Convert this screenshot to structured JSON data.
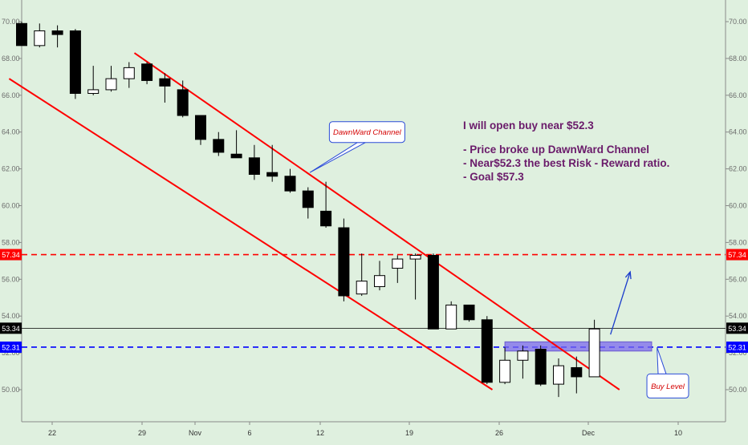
{
  "chart_data": {
    "type": "candlestick",
    "y_range": [
      48.6,
      71.0
    ],
    "y_ticks": [
      "70.00",
      "68.00",
      "66.00",
      "64.00",
      "62.00",
      "60.00",
      "58.00",
      "56.00",
      "54.00",
      "52.00",
      "50.00"
    ],
    "x_ticks": [
      "22",
      "29",
      "Nov",
      "6",
      "12",
      "19",
      "26",
      "Dec",
      "10"
    ],
    "candles": [
      {
        "o": 69.9,
        "h": 70.0,
        "l": 68.7,
        "c": 68.7
      },
      {
        "o": 68.7,
        "h": 69.9,
        "l": 68.6,
        "c": 69.5
      },
      {
        "o": 69.5,
        "h": 69.8,
        "l": 68.6,
        "c": 69.3
      },
      {
        "o": 69.5,
        "h": 69.6,
        "l": 65.8,
        "c": 66.1
      },
      {
        "o": 66.1,
        "h": 67.6,
        "l": 66.0,
        "c": 66.3
      },
      {
        "o": 66.3,
        "h": 67.6,
        "l": 66.2,
        "c": 66.9
      },
      {
        "o": 66.9,
        "h": 67.8,
        "l": 66.4,
        "c": 67.5
      },
      {
        "o": 67.7,
        "h": 67.8,
        "l": 66.6,
        "c": 66.8
      },
      {
        "o": 66.9,
        "h": 67.2,
        "l": 65.6,
        "c": 66.5
      },
      {
        "o": 66.3,
        "h": 66.8,
        "l": 64.8,
        "c": 64.9
      },
      {
        "o": 64.9,
        "h": 64.9,
        "l": 63.3,
        "c": 63.6
      },
      {
        "o": 63.6,
        "h": 64.0,
        "l": 62.7,
        "c": 62.9
      },
      {
        "o": 62.8,
        "h": 64.1,
        "l": 62.6,
        "c": 62.6
      },
      {
        "o": 62.6,
        "h": 63.3,
        "l": 61.4,
        "c": 61.7
      },
      {
        "o": 61.8,
        "h": 63.3,
        "l": 61.3,
        "c": 61.6
      },
      {
        "o": 61.6,
        "h": 62.0,
        "l": 60.7,
        "c": 60.8
      },
      {
        "o": 60.8,
        "h": 61.0,
        "l": 59.3,
        "c": 59.9
      },
      {
        "o": 59.7,
        "h": 61.3,
        "l": 58.8,
        "c": 58.9
      },
      {
        "o": 58.8,
        "h": 59.3,
        "l": 54.8,
        "c": 55.1
      },
      {
        "o": 55.2,
        "h": 57.4,
        "l": 55.1,
        "c": 55.9
      },
      {
        "o": 55.6,
        "h": 57.0,
        "l": 55.4,
        "c": 56.2
      },
      {
        "o": 56.6,
        "h": 57.3,
        "l": 55.8,
        "c": 57.1
      },
      {
        "o": 57.1,
        "h": 57.4,
        "l": 54.9,
        "c": 57.3
      },
      {
        "o": 57.3,
        "h": 57.4,
        "l": 53.4,
        "c": 53.3
      },
      {
        "o": 53.3,
        "h": 54.8,
        "l": 53.3,
        "c": 54.6
      },
      {
        "o": 54.6,
        "h": 54.6,
        "l": 53.7,
        "c": 53.8
      },
      {
        "o": 53.8,
        "h": 54.0,
        "l": 50.3,
        "c": 50.4
      },
      {
        "o": 50.4,
        "h": 52.3,
        "l": 50.3,
        "c": 51.6
      },
      {
        "o": 51.6,
        "h": 52.4,
        "l": 50.6,
        "c": 52.1
      },
      {
        "o": 52.2,
        "h": 52.4,
        "l": 50.2,
        "c": 50.3
      },
      {
        "o": 50.3,
        "h": 51.7,
        "l": 49.6,
        "c": 51.3
      },
      {
        "o": 51.2,
        "h": 51.8,
        "l": 49.8,
        "c": 50.7
      },
      {
        "o": 50.7,
        "h": 53.8,
        "l": 50.7,
        "c": 53.3
      }
    ],
    "lines": [
      {
        "name": "current",
        "value": 53.34,
        "label": "53.34",
        "color": "#000000",
        "style": "solid"
      },
      {
        "name": "resistance",
        "value": 57.34,
        "label": "57.34",
        "color": "#ff0000",
        "style": "dashed"
      },
      {
        "name": "buy",
        "value": 52.31,
        "label": "52.31",
        "color": "#0000ff",
        "style": "dashed"
      }
    ],
    "channel": {
      "color": "#ff0000",
      "upper": {
        "from": [
          6.3,
          68.3
        ],
        "to": [
          33.4,
          50.0
        ]
      },
      "lower": {
        "from": [
          -0.7,
          66.9
        ],
        "to": [
          26.3,
          50.0
        ]
      }
    },
    "buy_zone": {
      "from_index": 27.0,
      "to_index": 35.2,
      "low": 52.1,
      "high": 52.6,
      "color": "#7b68ee"
    },
    "arrow": {
      "from": [
        32.9,
        53.0
      ],
      "to": [
        34.0,
        56.4
      ],
      "color": "#1a3ccc"
    },
    "callouts": [
      {
        "name": "dawnward-channel",
        "text": "DawnWard Channel",
        "pointer": [
          16.1,
          61.8
        ],
        "box_center": [
          19.3,
          64.0
        ]
      },
      {
        "name": "buy-level",
        "text": "Buy Level",
        "pointer": [
          35.5,
          52.3
        ],
        "box_center": [
          36.1,
          50.2
        ]
      }
    ]
  },
  "note": {
    "heading": "I will open buy near $52.3",
    "bullets": [
      "- Price broke up DawnWard Channel",
      "- Near$52.3 the best Risk - Reward ratio.",
      "- Goal $57.3"
    ],
    "color": "#6a1b6a"
  },
  "colors": {
    "background": "#dff0df",
    "axis": "#999999",
    "bull": "#ffffff",
    "bear": "#000000"
  }
}
